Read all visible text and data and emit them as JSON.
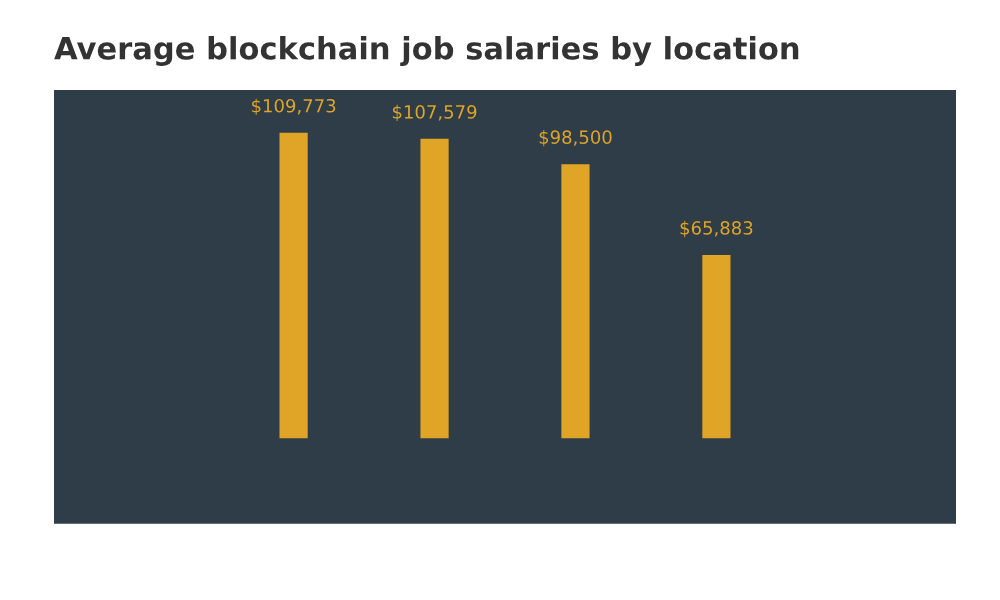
{
  "chart_data": {
    "type": "bar",
    "title": "Average blockchain job salaries by location",
    "categories": [
      null,
      null,
      null,
      null
    ],
    "series": [
      {
        "color": "#e0a526",
        "values": [
          109773,
          107579,
          98500,
          65883
        ],
        "value_labels": [
          "$109,773",
          "$107,579",
          "$98,500",
          "$65,883"
        ]
      }
    ],
    "grid": false,
    "legend": false
  }
}
